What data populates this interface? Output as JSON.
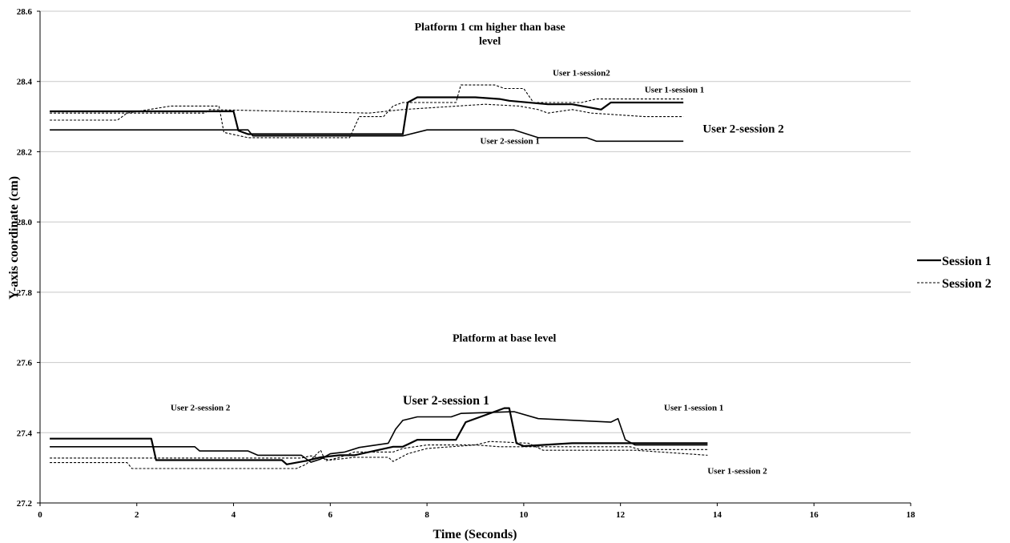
{
  "chart_data": {
    "type": "line",
    "xlabel": "Time (Seconds)",
    "ylabel": "Y-axis coordinate (cm)",
    "xlim": [
      0,
      18
    ],
    "ylim": [
      27.2,
      28.6
    ],
    "x_ticks": [
      "0",
      "2",
      "4",
      "6",
      "8",
      "10",
      "12",
      "14",
      "16",
      "18"
    ],
    "y_ticks": [
      "27.2",
      "27.4",
      "27.6",
      "27.8",
      "28.0",
      "28.2",
      "28.4",
      "28.6"
    ],
    "grid": "horizontal",
    "legend_position": "right",
    "legend": [
      {
        "label": "Session 1",
        "style": "solid"
      },
      {
        "label": "Session 2",
        "style": "dashed"
      }
    ],
    "annotations": [
      {
        "text": "Platform 1 cm higher than base",
        "x": 9.3,
        "y": 28.545
      },
      {
        "text": "level",
        "x": 9.3,
        "y": 28.505
      },
      {
        "text": "User 1-session2",
        "x": 10.6,
        "y": 28.417
      },
      {
        "text": "User 1-session 1",
        "x": 12.5,
        "y": 28.368
      },
      {
        "text": "User 2-session 2",
        "x": 13.7,
        "y": 28.255
      },
      {
        "text": "User 2-session 1",
        "x": 9.1,
        "y": 28.223
      },
      {
        "text": "Platform at base level",
        "x": 9.6,
        "y": 27.66
      },
      {
        "text": "User 2-session 2",
        "x": 2.7,
        "y": 27.463
      },
      {
        "text": "User 2-session 1",
        "x": 7.5,
        "y": 27.48
      },
      {
        "text": "User 1-session 1",
        "x": 12.9,
        "y": 27.463
      },
      {
        "text": "User 1-session 2",
        "x": 13.8,
        "y": 27.283
      }
    ],
    "series": [
      {
        "session": "Session 1",
        "style": "solid",
        "width": 2.2,
        "x": [
          0.2,
          4.0,
          4.1,
          4.3,
          6.5,
          7.5,
          7.6,
          7.8,
          9.0,
          9.5,
          9.7,
          10.5,
          11.0,
          11.6,
          11.8,
          13.3
        ],
        "y": [
          28.315,
          28.315,
          28.26,
          28.25,
          28.25,
          28.25,
          28.34,
          28.355,
          28.355,
          28.35,
          28.345,
          28.335,
          28.335,
          28.32,
          28.34,
          28.34
        ]
      },
      {
        "session": "Session 1",
        "style": "solid",
        "width": 1.6,
        "x": [
          0.2,
          4.3,
          4.4,
          7.5,
          8.0,
          9.8,
          10.3,
          11.3,
          11.5,
          13.3
        ],
        "y": [
          28.262,
          28.262,
          28.245,
          28.245,
          28.262,
          28.262,
          28.24,
          28.24,
          28.23,
          28.23
        ]
      },
      {
        "session": "Session 2",
        "style": "dashed",
        "width": 1.1,
        "x": [
          0.2,
          1.6,
          1.8,
          2.7,
          3.7,
          3.8,
          4.3,
          6.4,
          6.6,
          7.1,
          7.3,
          7.5,
          8.6,
          8.7,
          9.4,
          9.6,
          10.0,
          10.2,
          11.2,
          11.5,
          13.3
        ],
        "y": [
          28.29,
          28.29,
          28.31,
          28.33,
          28.33,
          28.255,
          28.24,
          28.24,
          28.3,
          28.3,
          28.33,
          28.34,
          28.34,
          28.39,
          28.39,
          28.38,
          28.38,
          28.34,
          28.34,
          28.35,
          28.35
        ]
      },
      {
        "session": "Session 2",
        "style": "dashed",
        "width": 1.1,
        "x": [
          0.2,
          3.4,
          3.5,
          6.8,
          7.5,
          9.2,
          9.9,
          10.3,
          10.5,
          11.0,
          11.4,
          12.5,
          13.3
        ],
        "y": [
          28.31,
          28.31,
          28.32,
          28.31,
          28.32,
          28.335,
          28.33,
          28.32,
          28.31,
          28.32,
          28.31,
          28.3,
          28.3
        ]
      },
      {
        "session": "Session 1",
        "style": "solid",
        "width": 1.6,
        "x": [
          0.2,
          3.2,
          3.3,
          4.3,
          4.5,
          5.4,
          5.6,
          5.8,
          6.0,
          6.3,
          6.6,
          7.2,
          7.35,
          7.5,
          7.8,
          8.5,
          8.7,
          9.8,
          10.3,
          11.8,
          11.95,
          12.1,
          12.3,
          13.8
        ],
        "y": [
          27.36,
          27.36,
          27.348,
          27.348,
          27.336,
          27.336,
          27.316,
          27.325,
          27.34,
          27.345,
          27.358,
          27.37,
          27.41,
          27.435,
          27.445,
          27.445,
          27.455,
          27.46,
          27.44,
          27.43,
          27.44,
          27.38,
          27.365,
          27.365
        ]
      },
      {
        "session": "Session 1",
        "style": "solid",
        "width": 2.2,
        "x": [
          0.2,
          2.3,
          2.4,
          5.0,
          5.1,
          5.5,
          5.8,
          6.2,
          6.5,
          6.8,
          7.3,
          7.5,
          7.8,
          8.6,
          8.8,
          9.6,
          9.7,
          9.85,
          10.0,
          11.0,
          12.0,
          12.3,
          13.8
        ],
        "y": [
          27.383,
          27.383,
          27.322,
          27.322,
          27.31,
          27.32,
          27.33,
          27.336,
          27.336,
          27.345,
          27.36,
          27.36,
          27.38,
          27.38,
          27.43,
          27.47,
          27.47,
          27.37,
          27.362,
          27.37,
          27.37,
          27.37,
          27.37
        ]
      },
      {
        "session": "Session 2",
        "style": "dashed",
        "width": 1.1,
        "x": [
          0.2,
          1.8,
          1.9,
          5.3,
          5.5,
          5.8,
          5.9,
          6.2,
          6.5,
          7.3,
          7.5,
          8.0,
          9.0,
          9.3,
          10.1,
          10.4,
          12.3,
          13.8
        ],
        "y": [
          27.315,
          27.315,
          27.298,
          27.298,
          27.31,
          27.35,
          27.32,
          27.33,
          27.345,
          27.345,
          27.355,
          27.365,
          27.365,
          27.375,
          27.37,
          27.35,
          27.35,
          27.336
        ]
      },
      {
        "session": "Session 2",
        "style": "dashed",
        "width": 1.1,
        "x": [
          0.2,
          5.4,
          5.6,
          6.0,
          6.5,
          7.2,
          7.3,
          7.6,
          8.0,
          9.0,
          9.5,
          10.2,
          11.0,
          12.2,
          12.4,
          13.8
        ],
        "y": [
          27.328,
          27.328,
          27.334,
          27.322,
          27.33,
          27.33,
          27.318,
          27.34,
          27.355,
          27.365,
          27.36,
          27.36,
          27.36,
          27.36,
          27.352,
          27.352
        ]
      }
    ]
  }
}
